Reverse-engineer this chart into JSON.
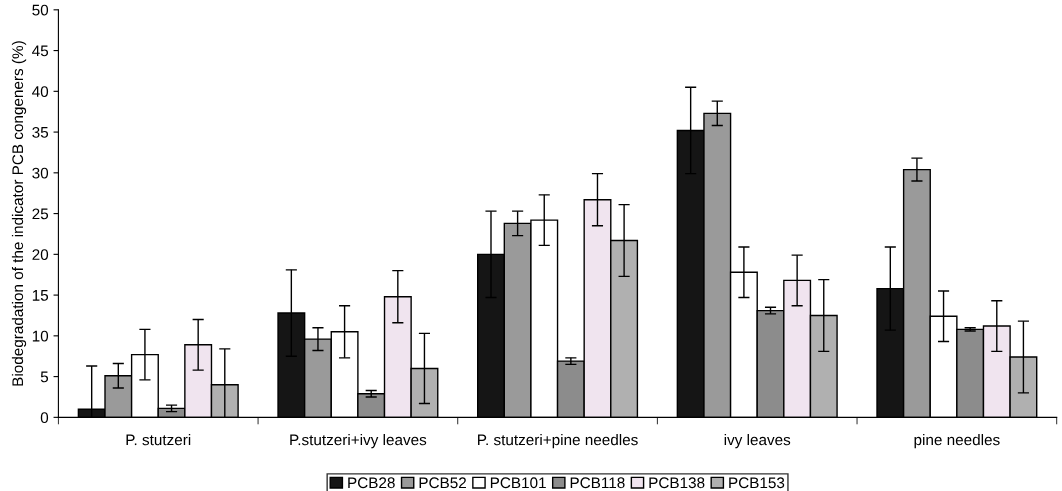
{
  "chart_data": {
    "type": "bar",
    "ylabel": "Biodegradation of the indicator PCB congeners (%)",
    "categories": [
      "P. stutzeri",
      "P.stutzeri+ivy leaves",
      "P. stutzeri+pine needles",
      "ivy leaves",
      "pine needles"
    ],
    "series": [
      {
        "name": "PCB28",
        "color": "#151515",
        "values": [
          1.0,
          12.8,
          20.0,
          35.2,
          15.8
        ],
        "errors": [
          5.3,
          5.3,
          5.3,
          5.3,
          5.1
        ]
      },
      {
        "name": "PCB52",
        "color": "#9a9a9a",
        "values": [
          5.1,
          9.6,
          23.8,
          37.3,
          30.4
        ],
        "errors": [
          1.5,
          1.4,
          1.5,
          1.5,
          1.4
        ]
      },
      {
        "name": "PCB101",
        "color": "#ffffff",
        "values": [
          7.7,
          10.5,
          24.2,
          17.8,
          12.4
        ],
        "errors": [
          3.1,
          3.2,
          3.1,
          3.1,
          3.1
        ]
      },
      {
        "name": "PCB118",
        "color": "#8c8c8c",
        "values": [
          1.1,
          2.9,
          6.9,
          13.1,
          10.8
        ],
        "errors": [
          0.4,
          0.4,
          0.4,
          0.4,
          0.2
        ]
      },
      {
        "name": "PCB138",
        "color": "#f0e4ef",
        "values": [
          8.9,
          14.8,
          26.7,
          16.8,
          11.2
        ],
        "errors": [
          3.1,
          3.2,
          3.2,
          3.1,
          3.1
        ]
      },
      {
        "name": "PCB153",
        "color": "#b0b0b0",
        "values": [
          4.0,
          6.0,
          21.7,
          12.5,
          7.4
        ],
        "errors": [
          4.4,
          4.3,
          4.4,
          4.4,
          4.4
        ]
      }
    ],
    "ylim": [
      0,
      50
    ],
    "yticks": [
      0,
      5,
      10,
      15,
      20,
      25,
      30,
      35,
      40,
      45,
      50
    ],
    "grid": false,
    "legend": "bottom"
  }
}
